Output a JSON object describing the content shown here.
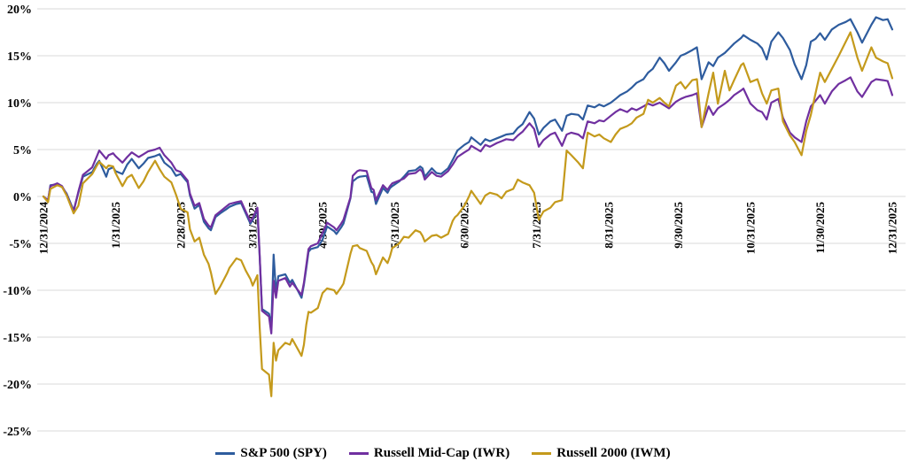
{
  "chart_data": {
    "type": "line",
    "title": "",
    "xlabel": "",
    "ylabel": "",
    "x_unit": "days since 12/31/2024",
    "x_range_days": [
      0,
      365
    ],
    "ylim": [
      -25,
      20
    ],
    "y_tick_step": 5,
    "grid": "horizontal",
    "legend_position": "bottom",
    "colors": {
      "grid": "#d9d9d9",
      "text": "#000000",
      "background": "#ffffff"
    },
    "y_tick_values": [
      20,
      15,
      10,
      5,
      0,
      -5,
      -10,
      -15,
      -20,
      -25
    ],
    "y_tick_labels": [
      "20%",
      "15%",
      "10%",
      "5%",
      "0%",
      "-5%",
      "-10%",
      "-15%",
      "-20%",
      "-25%"
    ],
    "x_tick_days": [
      0,
      31,
      59,
      90,
      120,
      151,
      181,
      212,
      243,
      273,
      304,
      334,
      365
    ],
    "x_tick_labels": [
      "12/31/2024",
      "1/31/2025",
      "2/28/2025",
      "3/31/2025",
      "4/30/2025",
      "5/31/2025",
      "6/30/2025",
      "7/31/2025",
      "8/31/2025",
      "9/30/2025",
      "10/31/2025",
      "11/30/2025",
      "12/31/2025"
    ],
    "days": [
      0,
      2,
      3,
      6,
      8,
      10,
      13,
      15,
      17,
      21,
      23,
      24,
      27,
      28,
      30,
      31,
      34,
      36,
      38,
      41,
      43,
      45,
      48,
      50,
      52,
      55,
      57,
      59,
      62,
      63,
      65,
      67,
      69,
      71,
      72,
      74,
      76,
      79,
      80,
      83,
      85,
      87,
      89,
      90,
      92,
      93,
      94,
      97,
      98,
      99,
      100,
      101,
      104,
      106,
      107,
      111,
      112,
      113,
      114,
      115,
      118,
      120,
      122,
      125,
      126,
      128,
      129,
      132,
      133,
      135,
      136,
      139,
      141,
      142,
      143,
      146,
      148,
      149,
      150,
      153,
      155,
      157,
      160,
      162,
      163,
      164,
      167,
      169,
      171,
      174,
      176,
      177,
      178,
      181,
      183,
      184,
      188,
      190,
      192,
      195,
      197,
      199,
      202,
      204,
      206,
      209,
      211,
      213,
      215,
      218,
      220,
      223,
      225,
      227,
      230,
      232,
      234,
      237,
      239,
      241,
      244,
      246,
      248,
      251,
      253,
      255,
      258,
      260,
      262,
      265,
      267,
      269,
      272,
      274,
      276,
      279,
      281,
      283,
      286,
      288,
      290,
      293,
      295,
      297,
      300,
      301,
      304,
      307,
      309,
      311,
      313,
      316,
      318,
      321,
      323,
      326,
      328,
      330,
      332,
      334,
      336,
      339,
      342,
      345,
      347,
      350,
      352,
      356,
      358,
      361,
      363,
      365
    ],
    "series": [
      {
        "name": "S&P 500 (SPY)",
        "color": "#2E5C9E",
        "values": [
          0,
          -0.5,
          1.2,
          1.3,
          1,
          0.3,
          -1.5,
          0.4,
          2.1,
          2.6,
          3.5,
          3.8,
          2.1,
          2.9,
          3.1,
          2.7,
          2.4,
          3.4,
          4,
          3,
          3.5,
          4.1,
          4.3,
          4.5,
          3.6,
          3,
          2.2,
          2.4,
          1.5,
          0.1,
          -1.3,
          -0.9,
          -2.7,
          -3.4,
          -3.6,
          -2.2,
          -1.8,
          -1.3,
          -1.1,
          -0.8,
          -0.7,
          -1.8,
          -2.9,
          -2.5,
          -1.4,
          -6.5,
          -12,
          -12.5,
          -13.8,
          -6.2,
          -10.2,
          -8.5,
          -8.3,
          -9.2,
          -8.9,
          -10.8,
          -9.4,
          -7.7,
          -5.9,
          -5.6,
          -5.4,
          -4.6,
          -3.2,
          -3.7,
          -4,
          -3.3,
          -2.9,
          -0.2,
          1.6,
          2,
          2.1,
          2.2,
          0.5,
          0.4,
          -0.8,
          0.9,
          0.4,
          0.9,
          1.1,
          1.6,
          2.1,
          2.7,
          2.8,
          3.2,
          3,
          2.1,
          3,
          2.5,
          2.4,
          3,
          3.9,
          4.4,
          4.9,
          5.5,
          5.8,
          6.3,
          5.5,
          6.1,
          5.9,
          6.2,
          6.4,
          6.6,
          6.7,
          7.3,
          7.7,
          9,
          8.3,
          6.6,
          7.3,
          8,
          8.2,
          7,
          8.6,
          8.8,
          8.7,
          8.2,
          9.7,
          9.5,
          9.8,
          9.6,
          10,
          10.4,
          10.8,
          11.2,
          11.6,
          12.1,
          12.5,
          13.2,
          13.6,
          14.8,
          14.2,
          13.4,
          14.3,
          15,
          15.2,
          15.6,
          15.9,
          12.5,
          14.3,
          13.9,
          14.8,
          15.3,
          15.8,
          16.3,
          16.9,
          17.2,
          16.7,
          16.3,
          15.8,
          14.6,
          16.5,
          17.5,
          16.9,
          15.6,
          14.1,
          12.5,
          14,
          16.5,
          16.8,
          17.4,
          16.7,
          17.8,
          18.3,
          18.6,
          18.9,
          17.5,
          16.4,
          18.3,
          19.1,
          18.8,
          18.9,
          17.8
        ]
      },
      {
        "name": "Russell Mid-Cap (IWR)",
        "color": "#7030A0",
        "values": [
          0,
          -0.4,
          1.1,
          1.4,
          1.1,
          0.2,
          -1.6,
          0.5,
          2.3,
          3.1,
          4.3,
          4.9,
          4,
          4.4,
          4.6,
          4.3,
          3.6,
          4.2,
          4.7,
          4.2,
          4.5,
          4.8,
          5,
          5.2,
          4.4,
          3.6,
          2.8,
          2.6,
          1.7,
          0.3,
          -1,
          -0.7,
          -2.4,
          -3.1,
          -3.3,
          -2,
          -1.6,
          -1,
          -0.8,
          -0.6,
          -0.5,
          -1.6,
          -2.7,
          -2.3,
          -1.2,
          -6.3,
          -12.2,
          -12.8,
          -14.6,
          -9,
          -10.8,
          -9,
          -8.7,
          -9.6,
          -9.2,
          -10.5,
          -9.2,
          -7.4,
          -5.6,
          -5.3,
          -5,
          -3.9,
          -2.8,
          -3.3,
          -3.6,
          -2.9,
          -2.5,
          -0.1,
          2.2,
          2.7,
          2.8,
          2.7,
          0.9,
          0.7,
          -0.4,
          1.2,
          0.7,
          1.1,
          1.4,
          1.7,
          1.9,
          2.4,
          2.5,
          2.9,
          2.6,
          1.8,
          2.6,
          2.2,
          2.1,
          2.7,
          3.4,
          3.8,
          4.2,
          4.7,
          5,
          5.4,
          4.8,
          5.5,
          5.3,
          5.7,
          5.9,
          6.1,
          6,
          6.5,
          6.9,
          7.8,
          7.2,
          5.3,
          6,
          6.6,
          6.8,
          5.4,
          6.6,
          6.8,
          6.6,
          6.2,
          8,
          7.8,
          8.1,
          8,
          8.6,
          9,
          9.3,
          9,
          9.4,
          9.2,
          9.6,
          9.9,
          9.7,
          10,
          9.7,
          9.4,
          10.1,
          10.4,
          10.6,
          10.8,
          11,
          7.4,
          9.6,
          8.7,
          9.4,
          9.9,
          10.3,
          10.8,
          11.3,
          11.5,
          9.9,
          9.2,
          9,
          8.2,
          10,
          10.4,
          8.4,
          6.8,
          6.3,
          5.8,
          8,
          9.6,
          10.2,
          10.8,
          9.9,
          11.2,
          12,
          12.4,
          12.7,
          11.2,
          10.6,
          12.2,
          12.5,
          12.4,
          12.3,
          10.8
        ]
      },
      {
        "name": "Russell 2000 (IWM)",
        "color": "#C49A1C",
        "values": [
          0,
          -0.6,
          0.8,
          1.2,
          1,
          0.1,
          -1.8,
          -1,
          1.4,
          2.4,
          3.3,
          3.7,
          3,
          3.3,
          3.2,
          2.5,
          1.1,
          2,
          2.3,
          0.9,
          1.6,
          2.6,
          3.8,
          2.9,
          2.1,
          1.5,
          0.2,
          -1.3,
          -1.7,
          -3.5,
          -4.8,
          -4.4,
          -6.2,
          -7.2,
          -8.1,
          -10.4,
          -9.6,
          -8.2,
          -7.6,
          -6.6,
          -6.8,
          -7.9,
          -8.8,
          -9.5,
          -8.4,
          -14,
          -18.4,
          -19,
          -21.3,
          -15.6,
          -17.5,
          -16.4,
          -15.6,
          -15.8,
          -15.2,
          -17,
          -15.8,
          -13.7,
          -12.3,
          -12.4,
          -11.9,
          -10.3,
          -9.8,
          -10,
          -10.4,
          -9.7,
          -9.3,
          -6.1,
          -5.3,
          -5.2,
          -5.5,
          -5.8,
          -7,
          -7.4,
          -8.3,
          -6.5,
          -7.1,
          -6.4,
          -5.5,
          -5,
          -4.3,
          -4.4,
          -3.6,
          -3.8,
          -4.2,
          -4.8,
          -4.2,
          -4.1,
          -4.4,
          -4,
          -2.6,
          -2.2,
          -2,
          -1,
          0,
          0.6,
          -0.8,
          0.1,
          0.4,
          0.2,
          -0.2,
          0.5,
          0.8,
          1.8,
          1.5,
          1.2,
          0.4,
          -2.5,
          -1.6,
          -1.2,
          -0.6,
          -0.4,
          4.9,
          4.4,
          3.6,
          3,
          6.8,
          6.4,
          6.6,
          6.2,
          5.8,
          6.6,
          7.2,
          7.5,
          7.8,
          8.4,
          8.8,
          10.3,
          10,
          10.5,
          10,
          9.6,
          11.8,
          12.2,
          11.5,
          12.4,
          12.5,
          7.4,
          11,
          13.2,
          9.9,
          13.4,
          11.3,
          12.4,
          14,
          14.2,
          12.2,
          12.5,
          11,
          9.9,
          11.3,
          11.5,
          8,
          6.5,
          5.8,
          4.4,
          7,
          8.7,
          11,
          13.2,
          12.2,
          13.6,
          15,
          16.5,
          17.5,
          14.8,
          13.4,
          15.9,
          14.8,
          14.4,
          14.2,
          12.6
        ]
      }
    ]
  }
}
